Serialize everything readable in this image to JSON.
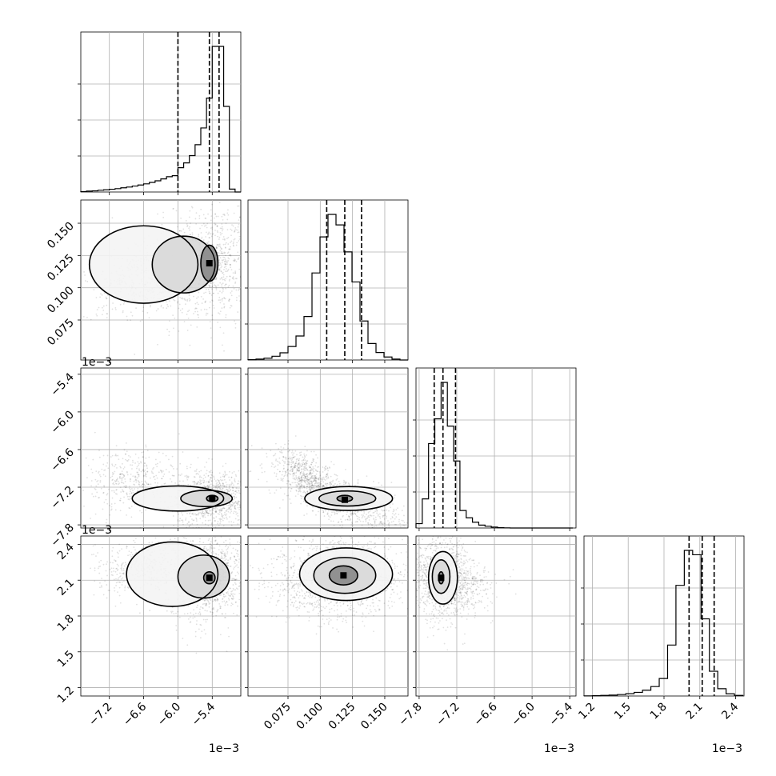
{
  "chart_data": {
    "type": "scatter",
    "title": "",
    "grid": true,
    "parameters": [
      {
        "range": [
          -7.7,
          -4.9
        ],
        "ticks": [
          -7.2,
          -6.6,
          -6.0,
          -5.4
        ],
        "tick_labels": [
          "−7.2",
          "−6.6",
          "−6.0",
          "−5.4"
        ],
        "offset_label": "1e−3",
        "quantiles": [
          -6.0,
          -5.45,
          -5.28
        ],
        "hist_bin_edges": [
          -7.7,
          -7.6,
          -7.5,
          -7.4,
          -7.3,
          -7.2,
          -7.1,
          -7.0,
          -6.9,
          -6.8,
          -6.7,
          -6.6,
          -6.5,
          -6.4,
          -6.3,
          -6.2,
          -6.1,
          -6.0,
          -5.9,
          -5.8,
          -5.7,
          -5.6,
          -5.5,
          -5.4,
          -5.3,
          -5.2,
          -5.1,
          -5.0,
          -4.9
        ],
        "hist_counts": [
          0.3,
          0.6,
          0.8,
          1.2,
          1.5,
          1.9,
          2.3,
          2.9,
          3.4,
          4.1,
          4.8,
          5.6,
          6.6,
          7.7,
          9.0,
          10.5,
          11.2,
          16.7,
          20.0,
          25.0,
          32.5,
          44.0,
          64.5,
          100.0,
          100.0,
          58.8,
          2.0,
          0.0
        ]
      },
      {
        "range": [
          0.044,
          0.168
        ],
        "ticks": [
          0.075,
          0.1,
          0.125,
          0.15
        ],
        "tick_labels": [
          "0.075",
          "0.100",
          "0.125",
          "0.150"
        ],
        "offset_label": "",
        "quantiles": [
          0.105,
          0.119,
          0.132
        ],
        "hist_bin_edges": [
          0.044,
          0.0502,
          0.0564,
          0.0626,
          0.0688,
          0.075,
          0.0812,
          0.0874,
          0.0936,
          0.0998,
          0.106,
          0.1122,
          0.1184,
          0.1246,
          0.1308,
          0.137,
          0.1432,
          0.1494,
          0.1556,
          0.1618,
          0.168
        ],
        "hist_counts": [
          0.2,
          0.6,
          1.2,
          2.5,
          4.8,
          9.0,
          16.0,
          29.0,
          58.0,
          82.0,
          97.0,
          90.0,
          72.0,
          52.0,
          26.0,
          11.0,
          5.0,
          2.0,
          0.6,
          0.0
        ]
      },
      {
        "range": [
          -7.85,
          -5.3
        ],
        "ticks": [
          -7.8,
          -7.2,
          -6.6,
          -6.0,
          -5.4
        ],
        "tick_labels": [
          "−7.8",
          "−7.2",
          "−6.6",
          "−6.0",
          "−5.4"
        ],
        "offset_label": "1e−3",
        "quantiles": [
          -7.56,
          -7.42,
          -7.22
        ],
        "hist_bin_edges": [
          -7.85,
          -7.75,
          -7.65,
          -7.55,
          -7.45,
          -7.35,
          -7.25,
          -7.15,
          -7.05,
          -6.95,
          -6.85,
          -6.75,
          -6.65,
          -6.55,
          -6.45,
          -6.35,
          -6.25,
          -6.15,
          -6.05,
          -5.95,
          -5.85,
          -5.75,
          -5.65,
          -5.55,
          -5.45,
          -5.35
        ],
        "hist_counts": [
          3.0,
          20.0,
          58.0,
          75.0,
          100.0,
          70.0,
          46.0,
          12.0,
          7.0,
          4.0,
          2.0,
          1.2,
          0.6,
          0.2,
          0.1,
          0.0,
          0.0,
          0.0,
          0.0,
          0.0,
          0.0,
          0.0,
          0.0,
          0.0,
          0.0
        ]
      },
      {
        "range": [
          1.13,
          2.47
        ],
        "ticks": [
          1.2,
          1.5,
          1.8,
          2.1,
          2.4
        ],
        "tick_labels": [
          "1.2",
          "1.5",
          "1.8",
          "2.1",
          "2.4"
        ],
        "offset_label": "1e−3",
        "quantiles": [
          2.01,
          2.12,
          2.22
        ],
        "hist_bin_edges": [
          1.13,
          1.2,
          1.27,
          1.34,
          1.41,
          1.48,
          1.55,
          1.62,
          1.69,
          1.76,
          1.83,
          1.9,
          1.97,
          2.04,
          2.11,
          2.18,
          2.25,
          2.32,
          2.39,
          2.46
        ],
        "hist_counts": [
          0.1,
          0.2,
          0.4,
          0.6,
          1.0,
          1.6,
          2.5,
          4.0,
          6.5,
          12.0,
          35.0,
          76.0,
          100.0,
          97.0,
          53.0,
          17.0,
          5.0,
          1.5,
          0.4
        ]
      }
    ],
    "pairs": [
      {
        "x": 0,
        "y": 1,
        "mean": [
          -5.45,
          0.119
        ],
        "sd": [
          0.2,
          0.01
        ],
        "corr": 0.15,
        "tail_mean": [
          -6.6,
          0.105
        ],
        "tail_sd": [
          0.45,
          0.014
        ],
        "contours": [
          [
            -6.6,
            0.118,
            0.95,
            0.03
          ],
          [
            -5.9,
            0.118,
            0.55,
            0.022
          ],
          [
            -5.45,
            0.119,
            0.15,
            0.014
          ]
        ]
      },
      {
        "x": 0,
        "y": 2,
        "mean": [
          -5.4,
          -7.38
        ],
        "sd": [
          0.15,
          0.1
        ],
        "corr": 0.1,
        "tail_mean": [
          -6.8,
          -7.1
        ],
        "tail_sd": [
          0.45,
          0.25
        ],
        "contours": [
          [
            -6.0,
            -7.38,
            0.8,
            0.2
          ],
          [
            -5.5,
            -7.38,
            0.45,
            0.13
          ],
          [
            -5.4,
            -7.38,
            0.1,
            0.05
          ]
        ]
      },
      {
        "x": 0,
        "y": 3,
        "mean": [
          -5.45,
          2.12
        ],
        "sd": [
          0.15,
          0.08
        ],
        "corr": 0.1,
        "tail_mean": [
          -6.6,
          2.21
        ],
        "tail_sd": [
          0.45,
          0.12
        ],
        "contours": [
          [
            -6.1,
            2.15,
            0.8,
            0.27
          ],
          [
            -5.55,
            2.13,
            0.45,
            0.18
          ],
          [
            -5.45,
            2.12,
            0.1,
            0.05
          ]
        ]
      },
      {
        "x": 1,
        "y": 2,
        "mean": [
          0.119,
          -7.4
        ],
        "sd": [
          0.012,
          0.12
        ],
        "corr": -0.7,
        "tail_mean": [
          0.09,
          -7.0
        ],
        "tail_sd": [
          0.012,
          0.22
        ],
        "contours": [
          [
            0.122,
            -7.38,
            0.034,
            0.19
          ],
          [
            0.121,
            -7.38,
            0.022,
            0.12
          ],
          [
            0.119,
            -7.38,
            0.006,
            0.05
          ]
        ]
      },
      {
        "x": 1,
        "y": 3,
        "mean": [
          0.118,
          2.14
        ],
        "sd": [
          0.012,
          0.08
        ],
        "corr": 0.0,
        "tail_mean": [
          0.1,
          2.1
        ],
        "tail_sd": [
          0.02,
          0.15
        ],
        "contours": [
          [
            0.12,
            2.15,
            0.036,
            0.22
          ],
          [
            0.119,
            2.14,
            0.024,
            0.15
          ],
          [
            0.118,
            2.14,
            0.011,
            0.08
          ]
        ]
      },
      {
        "x": 2,
        "y": 3,
        "mean": [
          -7.45,
          2.12
        ],
        "sd": [
          0.1,
          0.08
        ],
        "corr": -0.1,
        "tail_mean": [
          -7.2,
          2.05
        ],
        "tail_sd": [
          0.3,
          0.12
        ],
        "contours": [
          [
            -7.42,
            2.12,
            0.23,
            0.22
          ],
          [
            -7.45,
            2.13,
            0.14,
            0.14
          ],
          [
            -7.45,
            2.12,
            0.04,
            0.05
          ]
        ]
      }
    ]
  }
}
